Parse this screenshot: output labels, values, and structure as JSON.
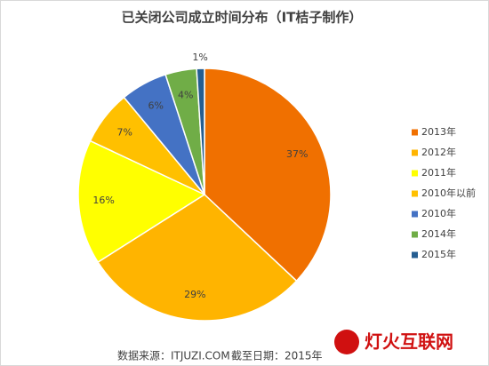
{
  "chart_data": {
    "type": "pie",
    "title": "已关闭公司成立时间分布（IT桔子制作）",
    "categories": [
      "2013年",
      "2012年",
      "2011年",
      "2010年以前",
      "2010年",
      "2014年",
      "2015年"
    ],
    "values": [
      37,
      29,
      16,
      7,
      6,
      4,
      1
    ],
    "value_labels": [
      "37%",
      "29%",
      "16%",
      "7%",
      "6%",
      "4%",
      "1%"
    ],
    "colors": [
      "#f07000",
      "#ffb400",
      "#ffff00",
      "#ffc000",
      "#4472c4",
      "#70ad47",
      "#255e91"
    ],
    "legend": "right",
    "source": "数据来源：ITJUZI.COM",
    "date_note": "截至日期：2015年",
    "watermark": "灯火互联网"
  }
}
